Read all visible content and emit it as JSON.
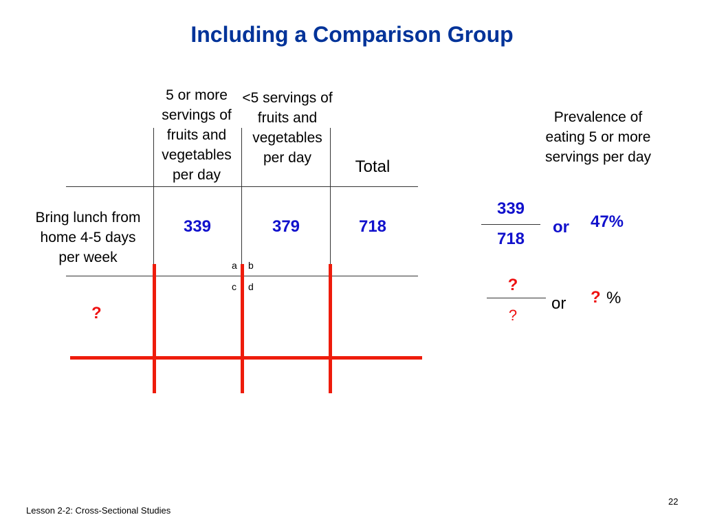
{
  "slide": {
    "title": "Including a Comparison Group",
    "footer": "Lesson 2-2: Cross-Sectional Studies",
    "page_number": "22"
  },
  "table": {
    "col_headers": [
      "5 or more servings of fruits and vegetables per day",
      "<5 servings of fruits and vegetables per day",
      "Total"
    ],
    "row1": {
      "label": "Bring lunch from home 4-5 days per week",
      "values": [
        "339",
        "379",
        "718"
      ]
    },
    "row2": {
      "label": "?"
    },
    "cell_letters": {
      "a": "a",
      "b": "b",
      "c": "c",
      "d": "d"
    }
  },
  "prevalence": {
    "header": "Prevalence of eating 5 or more servings per day",
    "row1": {
      "numerator": "339",
      "denominator": "718",
      "or": "or",
      "percent": "47%"
    },
    "row2": {
      "numerator": "?",
      "denominator": "?",
      "or": "or",
      "percent_q": "?",
      "percent_sign": "%"
    }
  },
  "colors": {
    "title": "#003399",
    "numbers": "#1111cc",
    "red_lines": "#ee1c0c",
    "question": "#ee1111"
  }
}
